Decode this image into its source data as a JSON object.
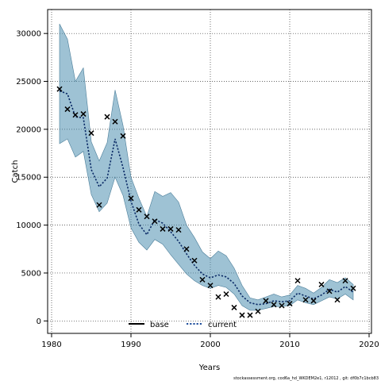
{
  "chart_data": {
    "type": "line",
    "xlabel": "Years",
    "ylabel": "Catch",
    "xlim": [
      1979.5,
      2020.3
    ],
    "ylim": [
      -1300,
      32500
    ],
    "x_ticks": [
      1980,
      1990,
      2000,
      2010,
      2020
    ],
    "y_ticks": [
      0,
      5000,
      10000,
      15000,
      20000,
      25000,
      30000
    ],
    "grid": true,
    "legend_position": "bottom-center",
    "legend": [
      {
        "label": "base",
        "style": "solid",
        "color": "#000000"
      },
      {
        "label": "current",
        "style": "dotted",
        "color": "#1f4e9c"
      }
    ],
    "band_color": "#4f8fb0",
    "x": [
      1981,
      1982,
      1983,
      1984,
      1985,
      1986,
      1987,
      1988,
      1989,
      1990,
      1991,
      1992,
      1993,
      1994,
      1995,
      1996,
      1997,
      1998,
      1999,
      2000,
      2001,
      2002,
      2003,
      2004,
      2005,
      2006,
      2007,
      2008,
      2009,
      2010,
      2011,
      2012,
      2013,
      2014,
      2015,
      2016,
      2017,
      2018
    ],
    "series": [
      {
        "name": "current",
        "style": "dotted",
        "values": [
          24000,
          23700,
          21300,
          21200,
          15800,
          14000,
          14900,
          19000,
          16000,
          12500,
          10100,
          9000,
          10600,
          10200,
          9300,
          8300,
          7000,
          5800,
          4900,
          4500,
          4800,
          4600,
          3900,
          2600,
          1900,
          1700,
          1800,
          2100,
          2000,
          2100,
          2900,
          2600,
          2300,
          2700,
          3300,
          3000,
          3600,
          3000
        ]
      }
    ],
    "band": {
      "lower": [
        18500,
        19000,
        17100,
        17700,
        13200,
        11400,
        12300,
        15000,
        13100,
        9700,
        8200,
        7400,
        8500,
        8000,
        6900,
        5900,
        4900,
        4200,
        3700,
        3400,
        3700,
        3500,
        2800,
        1600,
        1100,
        1100,
        1300,
        1500,
        1500,
        1600,
        2200,
        1900,
        1700,
        2100,
        2500,
        2300,
        2800,
        2200
      ],
      "upper": [
        31000,
        29400,
        25000,
        26400,
        18700,
        16700,
        18600,
        24100,
        20400,
        15000,
        12800,
        10900,
        13500,
        13000,
        13400,
        12400,
        10000,
        8700,
        7200,
        6500,
        7300,
        6800,
        5500,
        3700,
        2400,
        2200,
        2500,
        2800,
        2500,
        2700,
        3700,
        3400,
        2900,
        3500,
        4300,
        4000,
        4500,
        3800
      ]
    },
    "observations": [
      24200,
      22100,
      21500,
      21600,
      19600,
      12100,
      21300,
      20800,
      19300,
      12800,
      11600,
      10900,
      10400,
      9600,
      9600,
      9500,
      7500,
      6300,
      4300,
      3700,
      2500,
      2800,
      1400,
      600,
      600,
      1000,
      2100,
      1700,
      1600,
      1800,
      4200,
      2200,
      2100,
      3800,
      3100,
      2200,
      4200,
      3400
    ]
  },
  "footer": {
    "credit": "stockassessment.org, cod6a_hd_WKDEM2e1, r12012 , git: df0b7c1bcb83"
  }
}
